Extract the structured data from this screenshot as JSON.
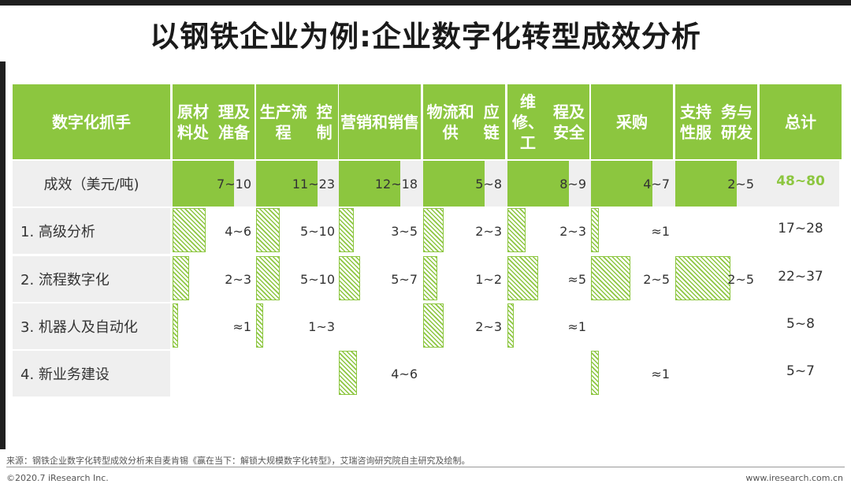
{
  "title": "以钢铁企业为例:企业数字化转型成效分析",
  "header": {
    "corner": "数字化抓手",
    "columns": [
      "原材料处理及准备",
      "生产流程控制",
      "营销和销售",
      "物流和供应链",
      "维修、工程及安全",
      "采购",
      "支持性服务与研发",
      "总计"
    ],
    "column_lines": [
      [
        "原材料处",
        "理及准备"
      ],
      [
        "生产流程",
        "控制"
      ],
      [
        "营销和销",
        "售"
      ],
      [
        "物流和供",
        "应链"
      ],
      [
        "维修、工",
        "程及安全"
      ],
      [
        "采购"
      ],
      [
        "支持性服",
        "务与研发"
      ],
      [
        "总计"
      ]
    ]
  },
  "chart_data": {
    "type": "table",
    "unit": "美元/吨",
    "columns": [
      "原材料处理及准备",
      "生产流程控制",
      "营销和销售",
      "物流和供应链",
      "维修、工程及安全",
      "采购",
      "支持性服务与研发",
      "总计"
    ],
    "rows": [
      {
        "label": "成效（美元/吨)",
        "cells": [
          "7~10",
          "11~23",
          "12~18",
          "5~8",
          "8~9",
          "4~7",
          "2~5"
        ],
        "total": "48~80",
        "bar_style": "solid"
      },
      {
        "label": "1. 高级分析",
        "cells": [
          "4~6",
          "5~10",
          "3~5",
          "2~3",
          "2~3",
          "≈1",
          ""
        ],
        "total": "17~28",
        "bar_style": "hatched"
      },
      {
        "label": "2. 流程数字化",
        "cells": [
          "2~3",
          "5~10",
          "5~7",
          "1~2",
          "≈5",
          "2~5",
          "2~5"
        ],
        "total": "22~37",
        "bar_style": "hatched"
      },
      {
        "label": "3. 机器人及自动化",
        "cells": [
          "≈1",
          "1~3",
          "",
          "2~3",
          "≈1",
          "",
          ""
        ],
        "total": "5~8",
        "bar_style": "hatched"
      },
      {
        "label": "4. 新业务建设",
        "cells": [
          "",
          "",
          "4~6",
          "",
          "",
          "≈1",
          ""
        ],
        "total": "5~7",
        "bar_style": "hatched"
      }
    ],
    "bar_max": [
      10,
      23,
      18,
      8,
      9,
      7,
      5
    ],
    "colors": {
      "accent": "#8cc63f",
      "header_text": "#ffffff",
      "row_bg": "#efefef"
    }
  },
  "footer": {
    "source": "来源：钢铁企业数字化转型成效分析来自麦肯锡《赢在当下：解锁大规模数字化转型》，艾瑞咨询研究院自主研究及绘制。",
    "copyright": "©2020.7 iResearch Inc.",
    "website": "www.iresearch.com.cn"
  }
}
